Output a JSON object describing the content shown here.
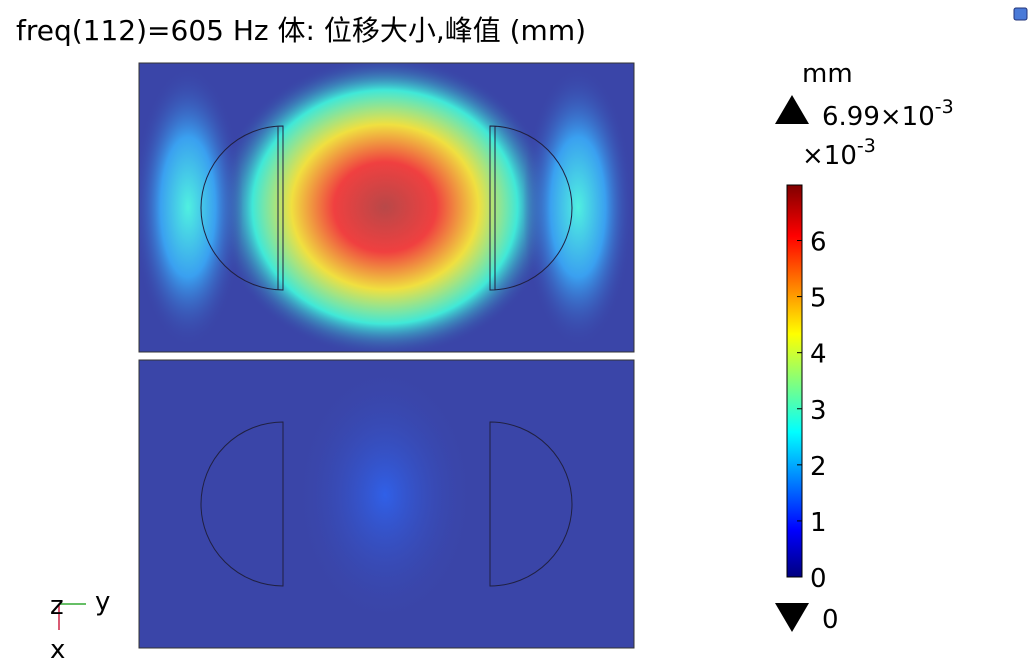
{
  "title": "freq(112)=605 Hz   体: 位移大小,峰值 (mm)",
  "colorbar": {
    "unit": "mm",
    "max": 6.99,
    "max_mantissa": "6.99×10",
    "max_exp": "-3",
    "scale": "×10",
    "scale_exp": "-3",
    "min": 0,
    "ticks": [
      0,
      1,
      2,
      3,
      4,
      5,
      6
    ]
  },
  "axes": {
    "z": "z",
    "y": "y",
    "x": "x"
  }
}
